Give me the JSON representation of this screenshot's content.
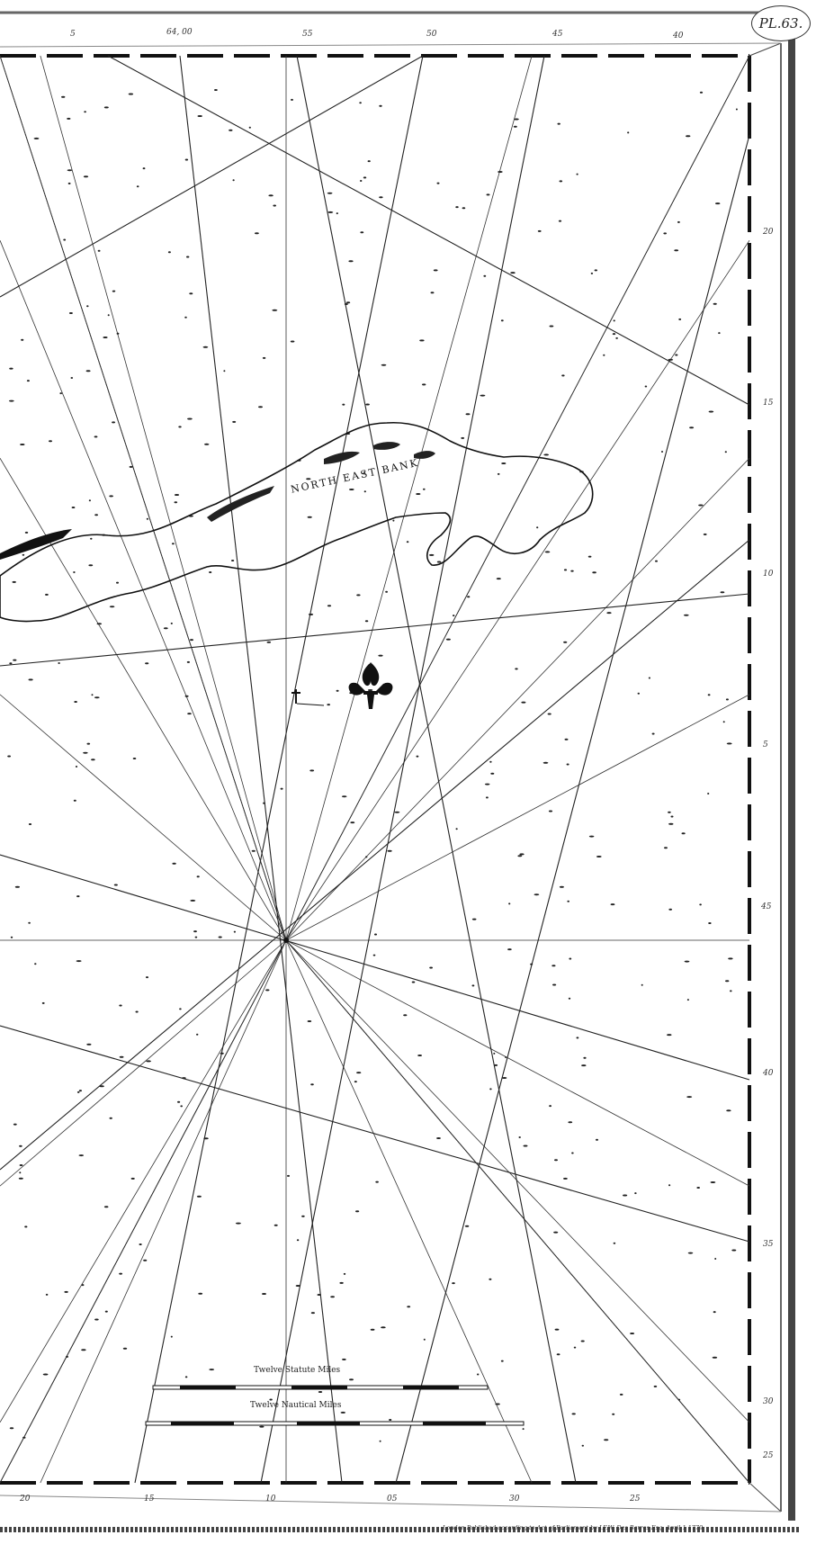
{
  "map": {
    "plate_number": "PL.63.",
    "region_label": "NORTH EAST BANK",
    "top_scale_labels": [
      "5",
      "64, 00",
      "55",
      "50",
      "45",
      "40"
    ],
    "bottom_scale_labels": [
      "20",
      "15",
      "10",
      "05",
      "30",
      "25"
    ],
    "right_scale_labels": [
      "20",
      "15",
      "10",
      "5",
      "45",
      "40",
      "35",
      "30",
      "25"
    ],
    "scale_bars": [
      {
        "title": "Twelve Statute Miles"
      },
      {
        "title": "Twelve Nautical Miles"
      }
    ],
    "imprint": "London Published according to Act of Parliament by J.F.W. Des Barres Esq. April 1 1779",
    "colors": {
      "ink": "#1a1a1a",
      "paper": "#ffffff",
      "rule": "#555555"
    }
  }
}
